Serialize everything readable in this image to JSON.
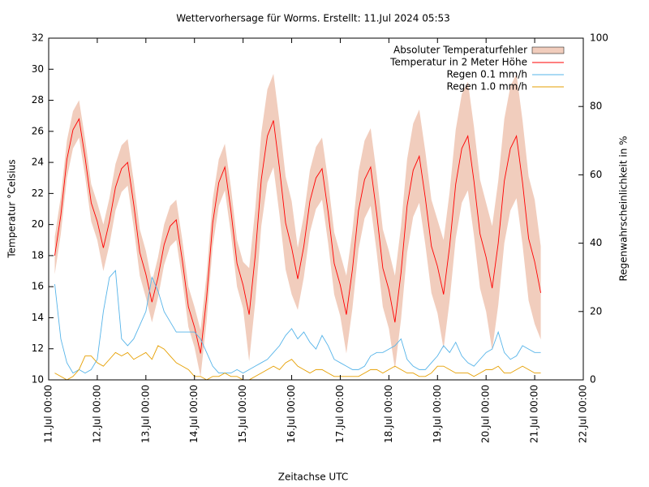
{
  "chart_data": {
    "type": "line",
    "title": "Wettervorhersage für Worms. Erstellt: 11.Jul 2024 05:53",
    "xlabel": "Zeitachse UTC",
    "ylabel": "Temperatur °Celsius",
    "y2label": "Regenwahrscheinlichkeit in %",
    "x": [
      "11.Jul 03:00",
      "11.Jul 06:00",
      "11.Jul 09:00",
      "11.Jul 12:00",
      "11.Jul 15:00",
      "11.Jul 18:00",
      "11.Jul 21:00",
      "12.Jul 00:00",
      "12.Jul 03:00",
      "12.Jul 06:00",
      "12.Jul 09:00",
      "12.Jul 12:00",
      "12.Jul 15:00",
      "12.Jul 18:00",
      "12.Jul 21:00",
      "13.Jul 00:00",
      "13.Jul 03:00",
      "13.Jul 06:00",
      "13.Jul 09:00",
      "13.Jul 12:00",
      "13.Jul 15:00",
      "13.Jul 18:00",
      "13.Jul 21:00",
      "14.Jul 00:00",
      "14.Jul 03:00",
      "14.Jul 06:00",
      "14.Jul 09:00",
      "14.Jul 12:00",
      "14.Jul 15:00",
      "14.Jul 18:00",
      "14.Jul 21:00",
      "15.Jul 00:00",
      "15.Jul 03:00",
      "15.Jul 06:00",
      "15.Jul 09:00",
      "15.Jul 12:00",
      "15.Jul 15:00",
      "15.Jul 18:00",
      "15.Jul 21:00",
      "16.Jul 00:00",
      "16.Jul 03:00",
      "16.Jul 06:00",
      "16.Jul 09:00",
      "16.Jul 12:00",
      "16.Jul 15:00",
      "16.Jul 18:00",
      "16.Jul 21:00",
      "17.Jul 00:00",
      "17.Jul 03:00",
      "17.Jul 06:00",
      "17.Jul 09:00",
      "17.Jul 12:00",
      "17.Jul 15:00",
      "17.Jul 18:00",
      "17.Jul 21:00",
      "18.Jul 00:00",
      "18.Jul 03:00",
      "18.Jul 06:00",
      "18.Jul 09:00",
      "18.Jul 12:00",
      "18.Jul 15:00",
      "18.Jul 18:00",
      "18.Jul 21:00",
      "19.Jul 00:00",
      "19.Jul 03:00",
      "19.Jul 06:00",
      "19.Jul 09:00",
      "19.Jul 12:00",
      "19.Jul 15:00",
      "19.Jul 18:00",
      "19.Jul 21:00",
      "20.Jul 00:00",
      "20.Jul 03:00",
      "20.Jul 06:00",
      "20.Jul 09:00",
      "20.Jul 12:00",
      "20.Jul 15:00",
      "20.Jul 18:00",
      "20.Jul 21:00",
      "21.Jul 00:00",
      "21.Jul 03:00"
    ],
    "series": [
      {
        "name": "Absoluter Temperaturfehler",
        "type": "band",
        "color": "#f1cdbd",
        "upper": [
          19.2,
          21.8,
          25.4,
          27.3,
          28.0,
          25.5,
          22.6,
          21.4,
          20.0,
          21.7,
          23.9,
          25.1,
          25.5,
          22.8,
          19.7,
          18.3,
          16.3,
          17.9,
          20.0,
          21.2,
          21.6,
          19.0,
          16.0,
          14.7,
          13.2,
          16.8,
          21.6,
          24.2,
          25.2,
          22.4,
          19.0,
          17.6,
          17.2,
          21.0,
          25.9,
          28.7,
          29.7,
          26.6,
          23.1,
          21.5,
          18.5,
          20.6,
          23.5,
          25.0,
          25.6,
          22.8,
          19.5,
          18.1,
          16.7,
          19.6,
          23.4,
          25.4,
          26.2,
          23.2,
          19.7,
          18.3,
          16.7,
          19.9,
          24.2,
          26.5,
          27.4,
          24.7,
          21.6,
          20.3,
          19.0,
          22.1,
          26.1,
          28.4,
          29.2,
          26.3,
          22.9,
          21.4,
          19.9,
          22.8,
          26.8,
          28.9,
          29.7,
          26.7,
          23.1,
          21.6,
          18.6
        ],
        "lower": [
          16.8,
          19.4,
          23.0,
          24.9,
          25.6,
          23.1,
          20.2,
          19.0,
          17.0,
          18.7,
          20.9,
          22.1,
          22.5,
          19.8,
          16.7,
          15.3,
          13.7,
          15.3,
          17.4,
          18.6,
          19.0,
          16.4,
          13.4,
          12.1,
          10.2,
          13.8,
          18.6,
          21.2,
          22.2,
          19.4,
          16.0,
          14.6,
          11.2,
          15.0,
          19.9,
          22.7,
          23.7,
          20.6,
          17.1,
          15.5,
          14.5,
          16.6,
          19.5,
          21.0,
          21.6,
          18.8,
          15.5,
          14.1,
          11.7,
          14.6,
          18.4,
          20.4,
          21.2,
          18.2,
          14.7,
          13.3,
          10.7,
          13.9,
          18.2,
          20.5,
          21.4,
          18.7,
          15.6,
          14.3,
          12.0,
          15.1,
          19.1,
          21.4,
          22.2,
          19.3,
          15.9,
          14.4,
          11.9,
          14.8,
          18.8,
          20.9,
          21.7,
          18.7,
          15.1,
          13.6,
          12.6
        ]
      },
      {
        "name": "Temperatur in 2 Meter Höhe",
        "color": "#ff0000",
        "values": [
          18.0,
          20.6,
          24.2,
          26.1,
          26.8,
          24.3,
          21.4,
          20.2,
          18.5,
          20.2,
          22.4,
          23.6,
          24.0,
          21.3,
          18.2,
          16.8,
          15.0,
          16.6,
          18.7,
          19.9,
          20.3,
          17.7,
          14.7,
          13.4,
          11.7,
          15.3,
          20.1,
          22.7,
          23.7,
          20.9,
          17.5,
          16.1,
          14.2,
          18.0,
          22.9,
          25.7,
          26.7,
          23.6,
          20.1,
          18.5,
          16.5,
          18.6,
          21.5,
          23.0,
          23.6,
          20.8,
          17.5,
          16.1,
          14.2,
          17.1,
          20.9,
          22.9,
          23.7,
          20.7,
          17.2,
          15.8,
          13.7,
          16.9,
          21.2,
          23.5,
          24.4,
          21.7,
          18.6,
          17.3,
          15.5,
          18.6,
          22.6,
          24.9,
          25.7,
          22.8,
          19.4,
          17.9,
          15.9,
          18.8,
          22.8,
          24.9,
          25.7,
          22.7,
          19.1,
          17.6,
          15.6
        ]
      },
      {
        "name": "Regen 0.1 mm/h",
        "color": "#56b4e9",
        "axis": "y2",
        "values": [
          28,
          12,
          5,
          2,
          3,
          2,
          3,
          6,
          20,
          30,
          32,
          12,
          10,
          12,
          16,
          20,
          30,
          26,
          20,
          17,
          14,
          14,
          14,
          14,
          12,
          8,
          4,
          2,
          2,
          2,
          3,
          2,
          3,
          4,
          5,
          6,
          8,
          10,
          13,
          15,
          12,
          14,
          11,
          9,
          13,
          10,
          6,
          5,
          4,
          3,
          3,
          4,
          7,
          8,
          8,
          9,
          10,
          12,
          6,
          4,
          3,
          3,
          5,
          7,
          10,
          8,
          11,
          7,
          5,
          4,
          6,
          8,
          9,
          14,
          8,
          6,
          7,
          10,
          9,
          8,
          8
        ]
      },
      {
        "name": "Regen 1.0 mm/h",
        "color": "#e69f00",
        "axis": "y2",
        "values": [
          2,
          1,
          0,
          1,
          3,
          7,
          7,
          5,
          4,
          6,
          8,
          7,
          8,
          6,
          7,
          8,
          6,
          10,
          9,
          7,
          5,
          4,
          3,
          1,
          1,
          0,
          1,
          1,
          2,
          1,
          1,
          0,
          0,
          1,
          2,
          3,
          4,
          3,
          5,
          6,
          4,
          3,
          2,
          3,
          3,
          2,
          1,
          1,
          1,
          1,
          1,
          2,
          3,
          3,
          2,
          3,
          4,
          3,
          2,
          2,
          1,
          1,
          2,
          4,
          4,
          3,
          2,
          2,
          2,
          1,
          2,
          3,
          3,
          4,
          2,
          2,
          3,
          4,
          3,
          2,
          2
        ]
      }
    ],
    "xlim": [
      "11.Jul 00:00",
      "22.Jul 00:00"
    ],
    "xticks": [
      "11.Jul 00:00",
      "12.Jul 00:00",
      "13.Jul 00:00",
      "14.Jul 00:00",
      "15.Jul 00:00",
      "16.Jul 00:00",
      "17.Jul 00:00",
      "18.Jul 00:00",
      "19.Jul 00:00",
      "20.Jul 00:00",
      "21.Jul 00:00",
      "22.Jul 00:00"
    ],
    "ylim": [
      10,
      32
    ],
    "yticks": [
      10,
      12,
      14,
      16,
      18,
      20,
      22,
      24,
      26,
      28,
      30,
      32
    ],
    "y2lim": [
      0,
      100
    ],
    "y2ticks": [
      0,
      20,
      40,
      60,
      80,
      100
    ],
    "legend": "top-right"
  }
}
